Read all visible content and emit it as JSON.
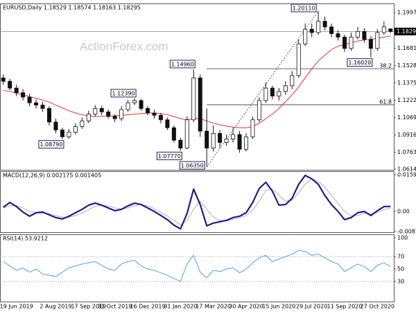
{
  "chart_data": [
    {
      "type": "candlestick",
      "title": "EURUSD,Daily  1.18529 1.18574 1.18163 1.18295",
      "watermark": "ActionForex.com",
      "categories": [
        null,
        null,
        "19 Jun 2019",
        null,
        null,
        null,
        null,
        null,
        "2 Aug 2019",
        null,
        null,
        null,
        null,
        "17 Sep 2019",
        null,
        null,
        null,
        "31 Oct 2019",
        null,
        null,
        null,
        null,
        "16 Dec 2019",
        null,
        null,
        null,
        null,
        "31 Jan 2020",
        null,
        null,
        null,
        null,
        "17 Mar 2020",
        null,
        null,
        null,
        null,
        "30 Apr 2020",
        null,
        null,
        null,
        null,
        "15 Jun 2020",
        null,
        null,
        null,
        null,
        "29 Jul 2020",
        null,
        null,
        null,
        null,
        "11 Sep 2020",
        null,
        null,
        null,
        null,
        "27 Oct 2020",
        null,
        null
      ],
      "open": [
        1.142,
        1.139,
        1.133,
        1.129,
        1.125,
        1.12,
        1.118,
        1.115,
        1.103,
        1.096,
        1.09,
        1.094,
        1.099,
        1.104,
        1.11,
        1.115,
        1.112,
        1.108,
        1.106,
        1.114,
        1.12,
        1.122,
        1.115,
        1.111,
        1.109,
        1.105,
        1.098,
        1.087,
        1.08,
        1.105,
        1.142,
        1.095,
        1.08,
        1.093,
        1.085,
        1.088,
        1.092,
        1.079,
        1.09,
        1.105,
        1.122,
        1.133,
        1.126,
        1.13,
        1.135,
        1.144,
        1.172,
        1.185,
        1.182,
        1.192,
        1.187,
        1.181,
        1.178,
        1.168,
        1.178,
        1.183,
        1.176,
        1.168,
        1.182,
        1.18529
      ],
      "high": [
        1.145,
        1.141,
        1.136,
        1.132,
        1.128,
        1.123,
        1.121,
        1.117,
        1.106,
        1.098,
        1.097,
        1.102,
        1.107,
        1.113,
        1.118,
        1.1175,
        1.114,
        1.11,
        1.117,
        1.1225,
        1.1239,
        1.1235,
        1.117,
        1.114,
        1.111,
        1.107,
        1.1,
        1.089,
        1.108,
        1.1496,
        1.145,
        1.115,
        1.1,
        1.096,
        1.092,
        1.098,
        1.095,
        1.093,
        1.108,
        1.125,
        1.138,
        1.135,
        1.133,
        1.139,
        1.148,
        1.176,
        1.19,
        1.19,
        1.2011,
        1.196,
        1.19,
        1.184,
        1.18,
        1.182,
        1.187,
        1.186,
        1.179,
        1.185,
        1.192,
        1.18574
      ],
      "low": [
        1.136,
        1.131,
        1.126,
        1.122,
        1.117,
        1.115,
        1.112,
        1.1,
        1.093,
        1.0879,
        1.0885,
        1.092,
        1.097,
        1.102,
        1.108,
        1.109,
        1.106,
        1.103,
        1.104,
        1.112,
        1.118,
        1.113,
        1.109,
        1.106,
        1.102,
        1.096,
        1.085,
        1.0777,
        1.079,
        1.103,
        1.09,
        1.0635,
        1.077,
        1.08,
        1.082,
        1.085,
        1.076,
        1.077,
        1.088,
        1.103,
        1.12,
        1.123,
        1.122,
        1.127,
        1.132,
        1.142,
        1.17,
        1.178,
        1.18,
        1.184,
        1.178,
        1.175,
        1.165,
        1.166,
        1.176,
        1.173,
        1.1602,
        1.166,
        1.18,
        1.18163
      ],
      "close": [
        1.139,
        1.133,
        1.129,
        1.125,
        1.12,
        1.118,
        1.115,
        1.103,
        1.096,
        1.09,
        1.094,
        1.099,
        1.104,
        1.11,
        1.115,
        1.112,
        1.108,
        1.106,
        1.114,
        1.12,
        1.122,
        1.115,
        1.111,
        1.109,
        1.105,
        1.098,
        1.087,
        1.08,
        1.105,
        1.142,
        1.095,
        1.08,
        1.093,
        1.085,
        1.088,
        1.092,
        1.079,
        1.09,
        1.105,
        1.122,
        1.133,
        1.126,
        1.13,
        1.135,
        1.144,
        1.172,
        1.185,
        1.182,
        1.192,
        1.187,
        1.181,
        1.178,
        1.168,
        1.178,
        1.183,
        1.176,
        1.168,
        1.182,
        1.187,
        1.18295
      ],
      "ma": {
        "color": "#e0312b",
        "values": [
          1.131,
          1.13,
          1.1285,
          1.127,
          1.1255,
          1.124,
          1.1225,
          1.1205,
          1.118,
          1.1155,
          1.113,
          1.111,
          1.1095,
          1.1085,
          1.108,
          1.108,
          1.1082,
          1.1085,
          1.109,
          1.1095,
          1.11,
          1.1105,
          1.111,
          1.111,
          1.1105,
          1.1095,
          1.108,
          1.106,
          1.105,
          1.106,
          1.106,
          1.104,
          1.102,
          1.1005,
          1.0995,
          1.0985,
          1.098,
          1.098,
          1.099,
          1.102,
          1.106,
          1.11,
          1.115,
          1.121,
          1.127,
          1.134,
          1.142,
          1.15,
          1.157,
          1.162,
          1.167,
          1.17,
          1.1715,
          1.173,
          1.1745,
          1.1755,
          1.176,
          1.177,
          1.178,
          1.179
        ]
      },
      "ylim": [
        1.0608,
        1.2077
      ],
      "yticks": [
        {
          "value": 1.1997,
          "label": "1.19970"
        },
        {
          "value": 1.1681,
          "label": "1.16810"
        },
        {
          "value": 1.1528,
          "label": "1.15280"
        },
        {
          "value": 1.1375,
          "label": "1.13750"
        },
        {
          "value": 1.1222,
          "label": "1.12220"
        },
        {
          "value": 1.1069,
          "label": "1.10690"
        },
        {
          "value": 1.0916,
          "label": "1.09160"
        },
        {
          "value": 1.0763,
          "label": "1.07630"
        },
        1.06145
      ],
      "current_price": {
        "value": 1.18295,
        "label": "1.18295"
      },
      "annotations": [
        "1.20110",
        "1.14960",
        "1.12390",
        "1.08790",
        "1.07770",
        "1.06350",
        "1.16020"
      ],
      "fib_levels": [
        {
          "label": "38.2",
          "value": 1.1501
        },
        {
          "label": "61.8",
          "value": 1.1183
        }
      ]
    },
    {
      "type": "line",
      "title": "MACD(12,26,9) 0.002175 0.001405",
      "series": [
        {
          "color": "#1c1c8c",
          "width": 2.2,
          "values": [
            0.0018,
            0.0039,
            0.0021,
            -0.0003,
            -0.0021,
            -0.0006,
            -0.0003,
            -0.0015,
            -0.0027,
            -0.0033,
            -0.0021,
            -0.0006,
            0.0009,
            0.0027,
            0.0036,
            0.0027,
            0.0015,
            0.0003,
            0.0009,
            0.0024,
            0.0036,
            0.003,
            0.0015,
            0.0,
            -0.0018,
            -0.0036,
            -0.006,
            -0.0076,
            -0.0009,
            0.0097,
            0.003,
            -0.0063,
            -0.0051,
            -0.0045,
            -0.0039,
            -0.0027,
            -0.0021,
            -0.0006,
            0.0039,
            0.01,
            0.0127,
            0.0088,
            0.0027,
            0.003,
            0.0057,
            0.0118,
            0.0157,
            0.0142,
            0.0118,
            0.0069,
            0.003,
            0.0,
            -0.0036,
            -0.0027,
            -0.0006,
            0.0,
            -0.0018,
            0.0003,
            0.0021,
            0.002175
          ]
        },
        {
          "color": "#b0b0b0",
          "width": 1,
          "values": [
            0.0015,
            0.0025,
            0.0025,
            0.0015,
            0.0,
            -0.0005,
            -0.0008,
            -0.001,
            -0.0018,
            -0.0025,
            -0.0026,
            -0.0018,
            -0.0008,
            0.0008,
            0.0022,
            0.0028,
            0.0024,
            0.0015,
            0.001,
            0.0015,
            0.0025,
            0.003,
            0.0024,
            0.0012,
            -0.0004,
            -0.002,
            -0.004,
            -0.0058,
            -0.004,
            0.001,
            0.0045,
            0.001,
            -0.0025,
            -0.004,
            -0.0042,
            -0.0035,
            -0.0028,
            -0.0018,
            0.0005,
            0.0045,
            0.009,
            0.01,
            0.007,
            0.0045,
            0.0048,
            0.008,
            0.012,
            0.014,
            0.0132,
            0.0105,
            0.007,
            0.0035,
            0.0,
            -0.002,
            -0.0018,
            -0.0008,
            -0.001,
            -0.0005,
            0.0008,
            0.001405
          ]
        }
      ],
      "ylim": [
        -0.0091,
        0.0175
      ],
      "yticks": [
        0.015991,
        {
          "value": 0,
          "label": "0.00"
        },
        -0.00876
      ]
    },
    {
      "type": "line",
      "title": "RSI(14) 53.9212",
      "series": [
        {
          "color": "#4aa3df",
          "width": 1,
          "values": [
            62,
            55,
            48,
            52,
            45,
            50,
            42,
            40,
            38,
            45,
            52,
            55,
            58,
            60,
            62,
            56,
            50,
            48,
            58,
            62,
            64,
            55,
            50,
            48,
            44,
            40,
            35,
            30,
            58,
            72,
            45,
            36,
            48,
            46,
            50,
            52,
            44,
            50,
            60,
            68,
            72,
            62,
            66,
            70,
            74,
            80,
            78,
            72,
            74,
            68,
            62,
            58,
            46,
            52,
            58,
            54,
            46,
            56,
            60,
            53.9212
          ]
        }
      ],
      "ylim": [
        -2.2,
        105.6
      ],
      "yticks": [
        100,
        70,
        50,
        30
      ],
      "levels": [
        70,
        30
      ]
    }
  ]
}
